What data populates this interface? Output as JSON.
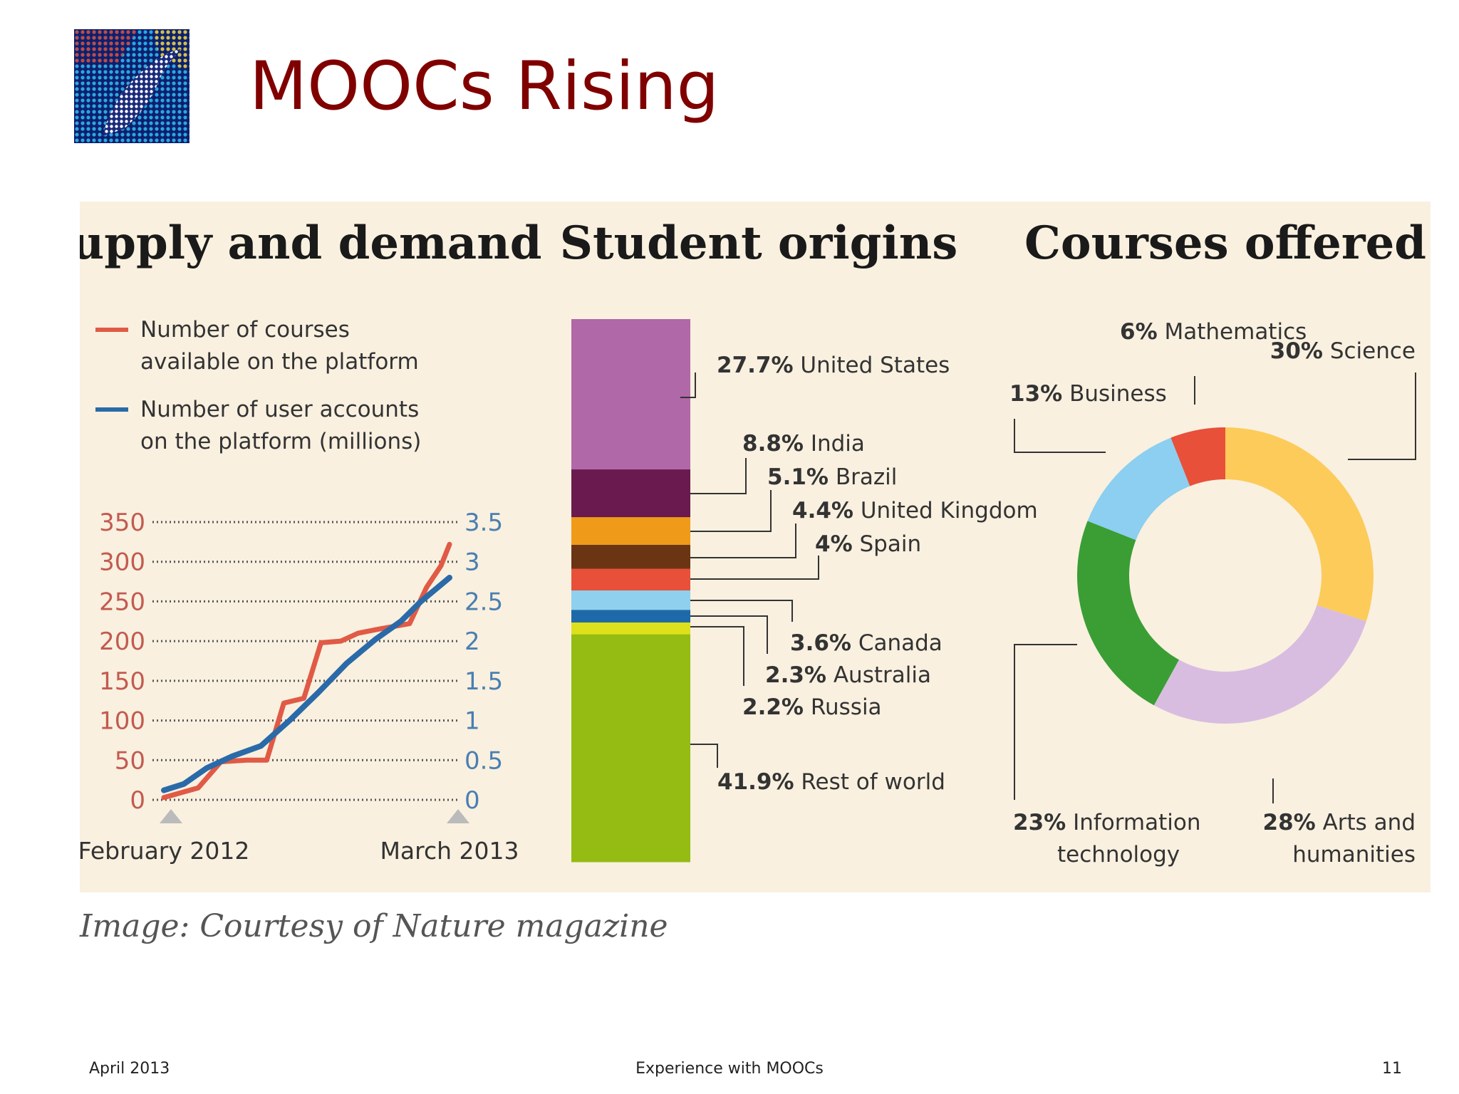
{
  "slide": {
    "title": "MOOCs Rising",
    "credit": "Image: Courtesy of Nature magazine",
    "footer_left": "April 2013",
    "footer_center": "Experience with MOOCs",
    "footer_right": "11"
  },
  "logo": {
    "icon": "dotted-dolphin-artwork-icon"
  },
  "chart_data": [
    {
      "type": "line",
      "title": "Supply and demand",
      "x_labels": [
        "February 2012",
        "March 2013"
      ],
      "left_axis": {
        "ticks": [
          "350",
          "300",
          "250",
          "200",
          "150",
          "100",
          "50",
          "0"
        ],
        "ylim": [
          0,
          350
        ]
      },
      "right_axis": {
        "ticks": [
          "3.5",
          "3",
          "2.5",
          "2",
          "1.5",
          "1",
          "0.5",
          "0"
        ],
        "ylim": [
          0,
          3.5
        ]
      },
      "grid": true,
      "series": [
        {
          "name": "Number of courses available on the platform",
          "legend_lines": [
            "Number of courses",
            "available on the platform"
          ],
          "axis": "left",
          "color": "#e05a45",
          "points": [
            [
              0,
              3
            ],
            [
              0.12,
              15
            ],
            [
              0.2,
              48
            ],
            [
              0.29,
              50
            ],
            [
              0.36,
              50
            ],
            [
              0.42,
              122
            ],
            [
              0.49,
              128
            ],
            [
              0.55,
              198
            ],
            [
              0.62,
              200
            ],
            [
              0.68,
              210
            ],
            [
              0.75,
              215
            ],
            [
              0.86,
              222
            ],
            [
              0.92,
              268
            ],
            [
              0.97,
              295
            ],
            [
              1,
              322
            ]
          ]
        },
        {
          "name": "Number of user accounts on the platform (millions)",
          "legend_lines": [
            "Number of user accounts",
            "on the platform (millions)"
          ],
          "axis": "right",
          "color": "#2a6aa8",
          "points": [
            [
              0,
              0.12
            ],
            [
              0.07,
              0.2
            ],
            [
              0.15,
              0.4
            ],
            [
              0.24,
              0.55
            ],
            [
              0.34,
              0.68
            ],
            [
              0.44,
              1.0
            ],
            [
              0.54,
              1.35
            ],
            [
              0.64,
              1.72
            ],
            [
              0.74,
              2.02
            ],
            [
              0.83,
              2.25
            ],
            [
              0.9,
              2.5
            ],
            [
              1,
              2.8
            ]
          ]
        }
      ]
    },
    {
      "type": "bar",
      "title": "Student origins",
      "stacked": true,
      "segments": [
        {
          "label": "United States",
          "pct": "27.7%",
          "value": 27.7,
          "color": "#b068a8"
        },
        {
          "label": "India",
          "pct": "8.8%",
          "value": 8.8,
          "color": "#6b1a4f"
        },
        {
          "label": "Brazil",
          "pct": "5.1%",
          "value": 5.1,
          "color": "#f09a1a"
        },
        {
          "label": "United Kingdom",
          "pct": "4.4%",
          "value": 4.4,
          "color": "#6b3514"
        },
        {
          "label": "Spain",
          "pct": "4%",
          "value": 4.0,
          "color": "#e8503a"
        },
        {
          "label": "Canada",
          "pct": "3.6%",
          "value": 3.6,
          "color": "#8fd0ee"
        },
        {
          "label": "Australia",
          "pct": "2.3%",
          "value": 2.3,
          "color": "#1e6aa8"
        },
        {
          "label": "Russia",
          "pct": "2.2%",
          "value": 2.2,
          "color": "#dde01a"
        },
        {
          "label": "Rest of world",
          "pct": "41.9%",
          "value": 41.9,
          "color": "#94bc12"
        }
      ]
    },
    {
      "type": "pie",
      "title": "Courses offered",
      "donut": true,
      "slices": [
        {
          "label": "Science",
          "pct": "30%",
          "value": 30,
          "color": "#fccb5a"
        },
        {
          "label": "Arts and humanities",
          "label_lines": [
            "Arts and",
            "humanities"
          ],
          "pct": "28%",
          "value": 28,
          "color": "#d9bde0"
        },
        {
          "label": "Information technology",
          "label_lines": [
            "Information",
            "technology"
          ],
          "pct": "23%",
          "value": 23,
          "color": "#3a9e34"
        },
        {
          "label": "Business",
          "pct": "13%",
          "value": 13,
          "color": "#8ccff0"
        },
        {
          "label": "Mathematics",
          "pct": "6%",
          "value": 6,
          "color": "#e8503a"
        }
      ]
    }
  ]
}
